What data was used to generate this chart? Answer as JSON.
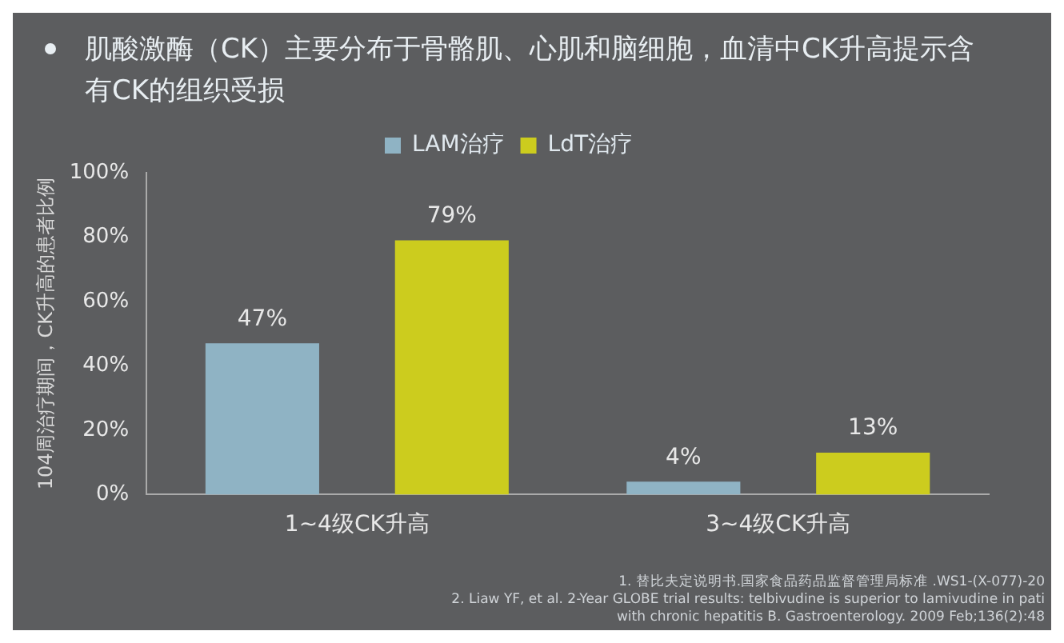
{
  "chart_data": {
    "type": "bar",
    "title": "肌酸激酶（CK）主要分布于骨骼肌、心肌和脑细胞，血清中CK升高提示含有CK的组织受损",
    "ylabel": "104周治疗期间，CK升高的患者比例",
    "categories": [
      "1~4级CK升高",
      "3~4级CK升高"
    ],
    "series": [
      {
        "name": "LAM治疗",
        "color": "#8fb3c4",
        "values": [
          47,
          4
        ],
        "value_labels": [
          "47%",
          "4%"
        ]
      },
      {
        "name": "LdT治疗",
        "color": "#cccc1e",
        "values": [
          79,
          13
        ],
        "value_labels": [
          "79%",
          "13%"
        ]
      }
    ],
    "ylim": [
      0,
      100
    ],
    "yticks": [
      {
        "value": 0,
        "label": "0%"
      },
      {
        "value": 20,
        "label": "20%"
      },
      {
        "value": 40,
        "label": "40%"
      },
      {
        "value": 60,
        "label": "60%"
      },
      {
        "value": 80,
        "label": "80%"
      },
      {
        "value": 100,
        "label": "100%"
      }
    ],
    "grid": false,
    "legend": "top",
    "annotations": [
      "1.  替比夫定说明书.国家食品药品监督管理局标准 .WS1-(X-077)-20",
      "2. Liaw YF, et al. 2-Year GLOBE trial results: telbivudine is superior to lamivudine in pati",
      "with chronic hepatitis B. Gastroenterology. 2009 Feb;136(2):48"
    ]
  }
}
